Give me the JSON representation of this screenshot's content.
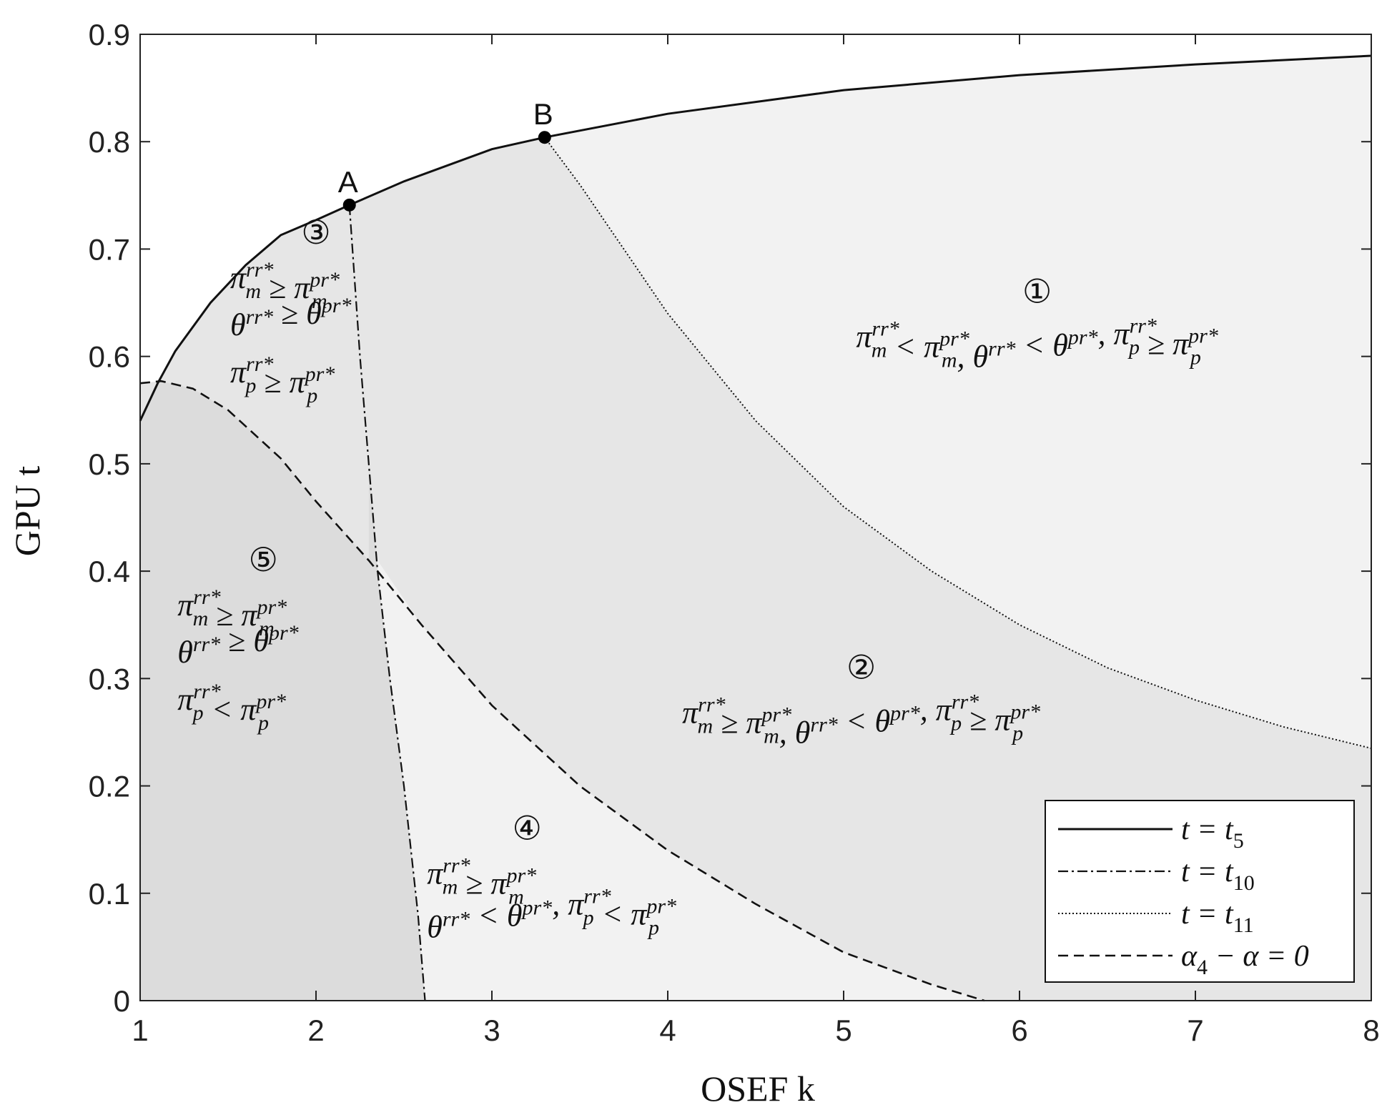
{
  "chart_data": {
    "type": "line",
    "title": "",
    "xlabel": "OSEF k",
    "ylabel": "GPU t",
    "xlim": [
      1,
      8
    ],
    "ylim": [
      0,
      0.9
    ],
    "xticks": [
      1,
      2,
      3,
      4,
      5,
      6,
      7,
      8
    ],
    "xtick_labels": [
      "1",
      "2",
      "3",
      "4",
      "5",
      "6",
      "7",
      "8"
    ],
    "yticks": [
      0,
      0.1,
      0.2,
      0.3,
      0.4,
      0.5,
      0.6,
      0.7,
      0.8,
      0.9
    ],
    "ytick_labels": [
      "0",
      "0.1",
      "0.2",
      "0.3",
      "0.4",
      "0.5",
      "0.6",
      "0.7",
      "0.8",
      "0.9"
    ],
    "colors": {
      "region_light": "#f2f2f2",
      "region_mid": "#e6e6e6",
      "region_dark": "#dcdcdc",
      "line": "#111111"
    },
    "series": [
      {
        "name": "t = t5",
        "style": "solid",
        "x": [
          1.0,
          1.1,
          1.2,
          1.4,
          1.6,
          1.8,
          2.0,
          2.19,
          2.5,
          3.0,
          3.3,
          4.0,
          5.0,
          6.0,
          7.0,
          8.0
        ],
        "y": [
          0.54,
          0.575,
          0.605,
          0.65,
          0.685,
          0.713,
          0.727,
          0.741,
          0.763,
          0.793,
          0.804,
          0.826,
          0.848,
          0.862,
          0.872,
          0.88
        ]
      },
      {
        "name": "t = t10",
        "style": "dashdot",
        "x": [
          2.19,
          2.25,
          2.3,
          2.35,
          2.42,
          2.5,
          2.58,
          2.62
        ],
        "y": [
          0.741,
          0.6,
          0.5,
          0.4,
          0.3,
          0.2,
          0.08,
          0.0
        ]
      },
      {
        "name": "t = t11",
        "style": "dotted",
        "x": [
          3.3,
          3.5,
          4.0,
          4.5,
          5.0,
          5.5,
          6.0,
          6.5,
          7.0,
          7.5,
          8.0
        ],
        "y": [
          0.804,
          0.76,
          0.64,
          0.54,
          0.46,
          0.4,
          0.35,
          0.31,
          0.28,
          0.255,
          0.235
        ]
      },
      {
        "name": "α4 − α = 0",
        "style": "dashed",
        "x": [
          1.0,
          1.12,
          1.3,
          1.5,
          1.8,
          2.0,
          2.3,
          2.6,
          3.0,
          3.5,
          4.0,
          4.5,
          5.0,
          5.5,
          5.8
        ],
        "y": [
          0.575,
          0.577,
          0.57,
          0.55,
          0.505,
          0.465,
          0.41,
          0.35,
          0.275,
          0.2,
          0.14,
          0.09,
          0.045,
          0.015,
          0.0
        ]
      }
    ],
    "points": [
      {
        "label": "A",
        "x": 2.19,
        "y": 0.741
      },
      {
        "label": "B",
        "x": 3.3,
        "y": 0.804
      }
    ],
    "regions": [
      {
        "number": "①",
        "conditions": [
          "π_m^{rr*} < π_m^{pr*}, θ^{rr*} < θ^{pr*}, π_p^{rr*} ≥ π_p^{pr*}"
        ],
        "anchor": [
          6.1,
          0.65
        ]
      },
      {
        "number": "②",
        "conditions": [
          "π_m^{rr*} ≥ π_m^{pr*}, θ^{rr*} < θ^{pr*}, π_p^{rr*} ≥ π_p^{pr*}"
        ],
        "anchor": [
          5.1,
          0.3
        ]
      },
      {
        "number": "③",
        "conditions": [
          "π_m^{rr*} ≥ π_m^{pr*}",
          "θ^{rr*} ≥ θ^{pr*}",
          "π_p^{rr*} ≥ π_p^{pr*}"
        ],
        "anchor": [
          2.0,
          0.705
        ]
      },
      {
        "number": "④",
        "conditions": [
          "π_m^{rr*} ≥ π_m^{pr*}",
          "θ^{rr*} < θ^{pr*}, π_p^{rr*} < π_p^{pr*}"
        ],
        "anchor": [
          3.2,
          0.15
        ]
      },
      {
        "number": "⑤",
        "conditions": [
          "π_m^{rr*} ≥ π_m^{pr*}",
          "θ^{rr*} ≥ θ^{pr*}",
          "π_p^{rr*} < π_p^{pr*}"
        ],
        "anchor": [
          1.7,
          0.4
        ]
      }
    ],
    "legend": {
      "location": "bottom-right",
      "entries": [
        {
          "series": "t = t5",
          "base": "t = t",
          "sub": "5"
        },
        {
          "series": "t = t10",
          "base": "t = t",
          "sub": "10"
        },
        {
          "series": "t = t11",
          "base": "t = t",
          "sub": "11"
        },
        {
          "series": "α4 − α = 0",
          "base": "α",
          "sub": "4",
          "tail": " − α = 0"
        }
      ]
    }
  }
}
